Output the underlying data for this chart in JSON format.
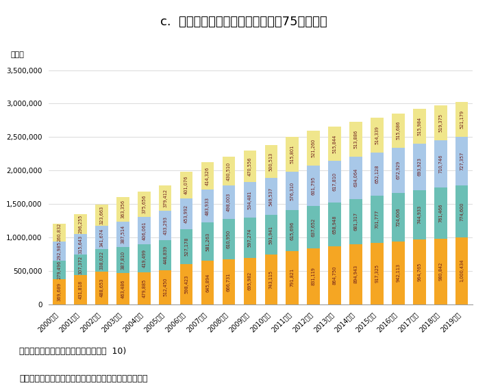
{
  "title": "c.  第１号被保険者（後期高齢者：75歳以上）",
  "years": [
    "2000年度",
    "2001年度",
    "2002年度",
    "2003年度",
    "2004年度",
    "2005年度",
    "2006年度",
    "2007年度",
    "2008年度",
    "2009年度",
    "2010年度",
    "2011年度",
    "2012年度",
    "2013年度",
    "2014年度",
    "2015年度",
    "2016年度",
    "2017年度",
    "2018年度",
    "2019年度"
  ],
  "ykaigo2": [
    369689,
    431818,
    488653,
    463486,
    479885,
    512450,
    598423,
    645894,
    666731,
    695982,
    743115,
    791821,
    831119,
    864750,
    894943,
    917325,
    942113,
    964765,
    980842,
    1000434
  ],
  "ykaigo3": [
    279496,
    307372,
    338022,
    387810,
    419499,
    448839,
    527178,
    581263,
    610950,
    597274,
    591941,
    615696,
    637652,
    658948,
    681317,
    701777,
    724606,
    744933,
    761466,
    774600
  ],
  "ykaigo4": [
    292985,
    315643,
    341674,
    387514,
    406061,
    433293,
    453992,
    483933,
    498003,
    534481,
    549537,
    576310,
    601795,
    617810,
    634064,
    652128,
    672929,
    693923,
    710746,
    727357
  ],
  "ykaigo5": [
    260832,
    296255,
    323663,
    363356,
    375656,
    379412,
    401076,
    414326,
    430510,
    470556,
    500513,
    515801,
    521260,
    515844,
    513886,
    514339,
    515686,
    515984,
    519375,
    521179
  ],
  "color2": "#F5A623",
  "color3": "#6BBFB5",
  "color4": "#A8C8E8",
  "color5": "#F0E68C",
  "ylabel": "（人）",
  "ylim": [
    0,
    3500000
  ],
  "ytick_vals": [
    0,
    500000,
    1000000,
    1500000,
    2000000,
    2500000,
    3000000,
    3500000
  ],
  "ytick_labels": [
    "0",
    "500,000",
    "1,000,000",
    "1,500,000",
    "2,000,000",
    "2,500,000",
    "3,000,000",
    "3,500,000"
  ],
  "source1": "出典：介護保険事業状況報告（年表）  10)",
  "source2": "出所：上記データをもとに医薬産業政策研究所にて作成",
  "label_color": "#6B1A1A",
  "label_fontsize": 4.8,
  "bar_width": 0.6
}
